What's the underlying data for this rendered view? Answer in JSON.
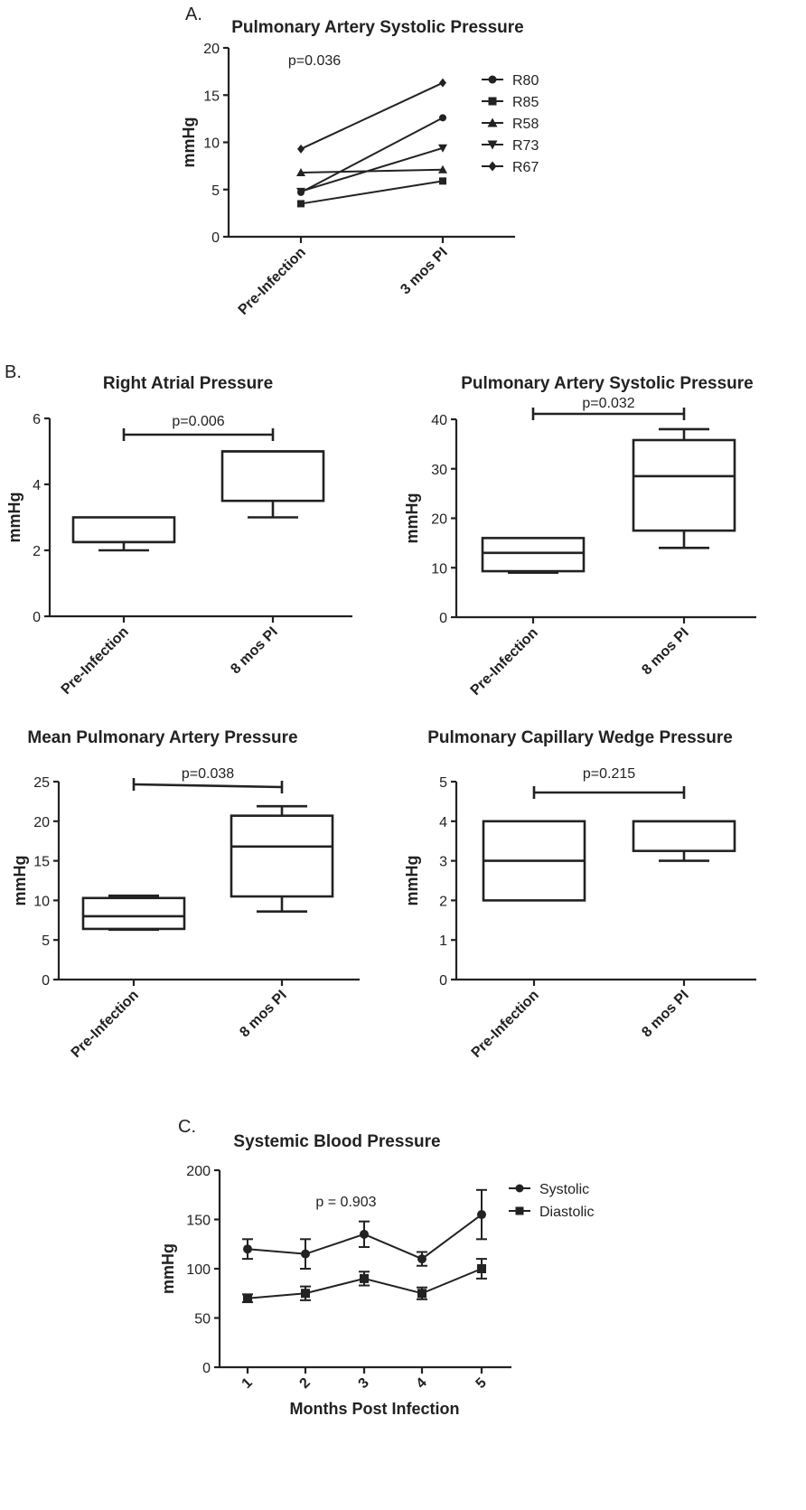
{
  "chart_data": [
    {
      "id": "A",
      "panel_label": "A.",
      "type": "line",
      "title": "Pulmonary  Artery  Systolic Pressure",
      "ylabel": "mmHg",
      "xlabel": "",
      "categories": [
        "Pre-Infection",
        "3 mos PI"
      ],
      "ylim": [
        0,
        20
      ],
      "yticks": [
        "0",
        "5",
        "10",
        "15",
        "20"
      ],
      "annotation": "p=0.036",
      "legend_position": "right",
      "series": [
        {
          "name": "R80",
          "marker": "circle",
          "values": [
            4.7,
            12.6
          ]
        },
        {
          "name": "R85",
          "marker": "square",
          "values": [
            3.5,
            5.9
          ]
        },
        {
          "name": "R58",
          "marker": "triangle-up",
          "values": [
            6.8,
            7.1
          ]
        },
        {
          "name": "R73",
          "marker": "triangle-down",
          "values": [
            4.8,
            9.4
          ]
        },
        {
          "name": "R67",
          "marker": "diamond",
          "values": [
            9.3,
            16.3
          ]
        }
      ]
    },
    {
      "id": "B1",
      "panel_label": "B.",
      "type": "box",
      "title": "Right Atrial Pressure",
      "ylabel": "mmHg",
      "categories": [
        "Pre-Infection",
        "8 mos PI"
      ],
      "ylim": [
        0,
        6
      ],
      "yticks": [
        "0",
        "2",
        "4",
        "6"
      ],
      "annotation": "p=0.006",
      "boxes": [
        {
          "min": 2.0,
          "q1": 2.25,
          "median": 2.25,
          "q3": 3.0,
          "max": 3.0
        },
        {
          "min": 3.0,
          "q1": 3.5,
          "median": 5.0,
          "q3": 5.0,
          "max": 5.0
        }
      ]
    },
    {
      "id": "B2",
      "panel_label": "",
      "type": "box",
      "title": "Pulmonary Artery Systolic Pressure",
      "ylabel": "mmHg",
      "categories": [
        "Pre-Infection",
        "8 mos PI"
      ],
      "ylim": [
        0,
        40
      ],
      "yticks": [
        "0",
        "10",
        "20",
        "30",
        "40"
      ],
      "annotation": "p=0.032",
      "boxes": [
        {
          "min": 9.0,
          "q1": 9.3,
          "median": 13.0,
          "q3": 16.0,
          "max": 16.0
        },
        {
          "min": 14.0,
          "q1": 17.5,
          "median": 28.5,
          "q3": 35.8,
          "max": 38.0
        }
      ]
    },
    {
      "id": "B3",
      "panel_label": "",
      "type": "box",
      "title": "Mean Pulmonary Artery Pressure",
      "ylabel": "mmHg",
      "categories": [
        "Pre-Infection",
        "8 mos PI"
      ],
      "ylim": [
        0,
        25
      ],
      "yticks": [
        "0",
        "5",
        "10",
        "15",
        "20",
        "25"
      ],
      "annotation": "p=0.038",
      "boxes": [
        {
          "min": 6.3,
          "q1": 6.4,
          "median": 8.0,
          "q3": 10.3,
          "max": 10.6
        },
        {
          "min": 8.6,
          "q1": 10.5,
          "median": 16.8,
          "q3": 20.7,
          "max": 21.9
        }
      ]
    },
    {
      "id": "B4",
      "panel_label": "",
      "type": "box",
      "title": "Pulmonary  Capillary Wedge  Pressure",
      "ylabel": "mmHg",
      "categories": [
        "Pre-Infection",
        "8 mos PI"
      ],
      "ylim": [
        0,
        5
      ],
      "yticks": [
        "0",
        "1",
        "2",
        "3",
        "4",
        "5"
      ],
      "annotation": "p=0.215",
      "boxes": [
        {
          "min": 2.0,
          "q1": 2.0,
          "median": 3.0,
          "q3": 4.0,
          "max": 4.0
        },
        {
          "min": 3.0,
          "q1": 3.25,
          "median": 4.0,
          "q3": 4.0,
          "max": 4.0
        }
      ]
    },
    {
      "id": "C",
      "panel_label": "C.",
      "type": "line",
      "title": "Systemic Blood Pressure",
      "ylabel": "mmHg",
      "xlabel": "Months Post Infection",
      "categories": [
        "1",
        "2",
        "3",
        "4",
        "5"
      ],
      "ylim": [
        0,
        200
      ],
      "yticks": [
        "0",
        "50",
        "100",
        "150",
        "200"
      ],
      "annotation": "p = 0.903",
      "legend_position": "top-right",
      "series": [
        {
          "name": "Systolic",
          "marker": "circle",
          "values": [
            120,
            115,
            135,
            110,
            155
          ],
          "err": [
            10,
            15,
            13,
            7,
            25
          ]
        },
        {
          "name": "Diastolic",
          "marker": "square",
          "values": [
            70,
            75,
            90,
            75,
            100
          ],
          "err": [
            4,
            7,
            7,
            6,
            10
          ]
        }
      ]
    }
  ]
}
